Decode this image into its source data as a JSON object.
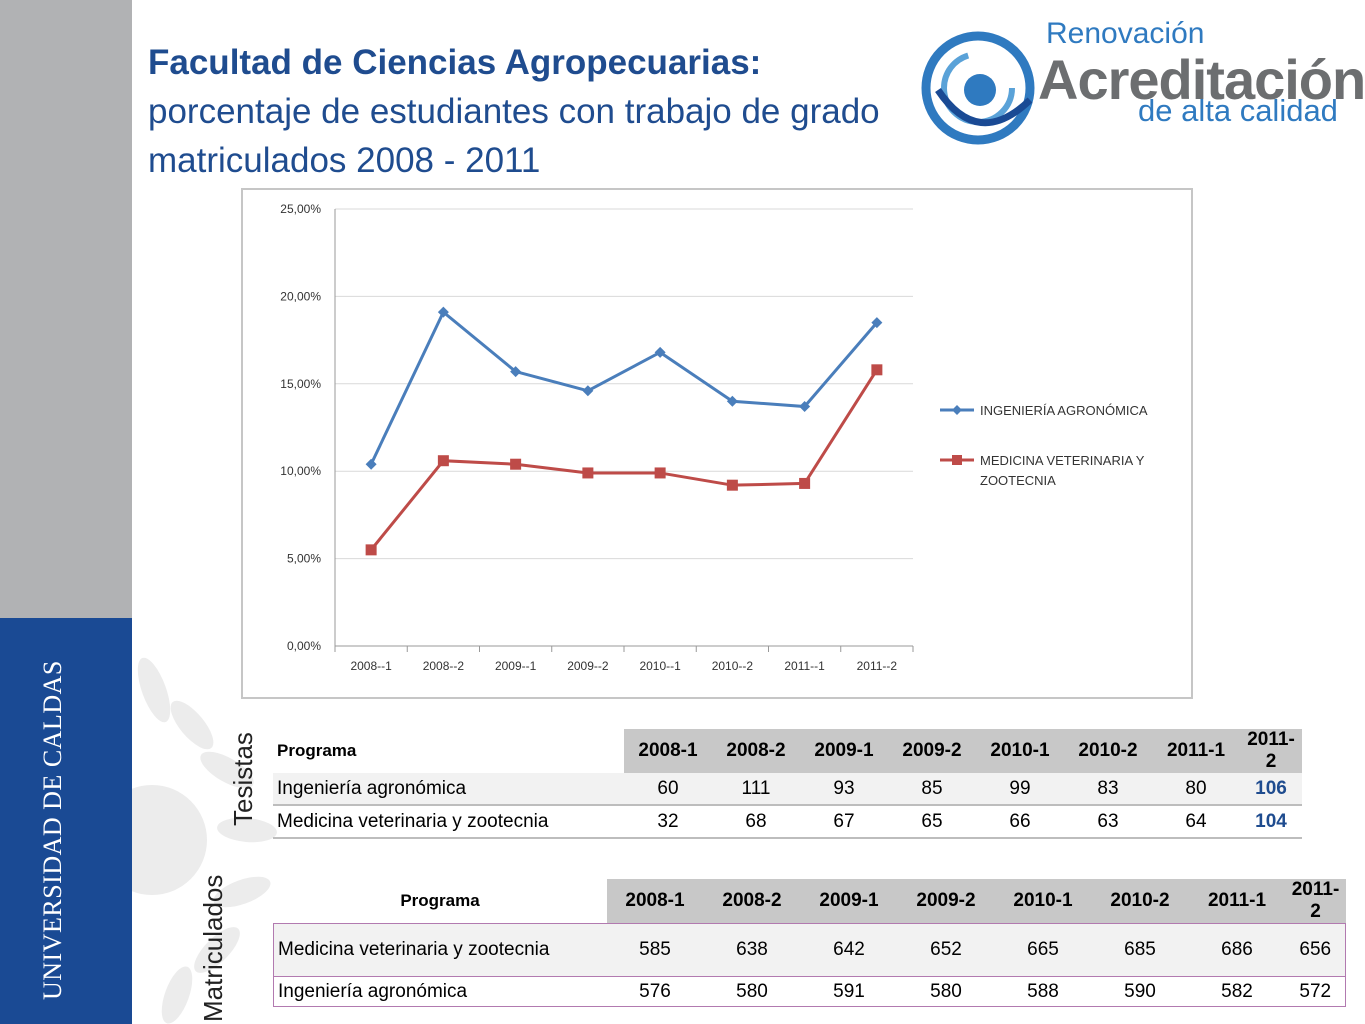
{
  "header": {
    "title_bold": "Facultad de Ciencias Agropecuarias:",
    "title_rest": "porcentaje de estudiantes con trabajo de grado matriculados 2008 - 2011"
  },
  "logo": {
    "line1": "Renovación",
    "line2": "Acreditación",
    "line3": "de alta calidad",
    "colors": {
      "blue": "#2f7ac0",
      "gray": "#6c6e70"
    }
  },
  "sidebar": {
    "university": "UNIVERSIDAD DE CALDAS"
  },
  "colors": {
    "title": "#1f4c8f",
    "sidebar_top": "#b1b2b4",
    "sidebar_bottom": "#1a4a94"
  },
  "chart_data": {
    "type": "line",
    "categories": [
      "2008--1",
      "2008--2",
      "2009--1",
      "2009--2",
      "2010--1",
      "2010--2",
      "2011--1",
      "2011--2"
    ],
    "series": [
      {
        "name": "INGENIERÍA AGRONÓMICA",
        "color": "#4a7ebb",
        "marker": "diamond",
        "values": [
          10.4,
          19.1,
          15.7,
          14.6,
          16.8,
          14.0,
          13.7,
          18.5
        ]
      },
      {
        "name": "MEDICINA VETERINARIA Y ZOOTECNIA",
        "color": "#be4b48",
        "marker": "square",
        "values": [
          5.5,
          10.6,
          10.4,
          9.9,
          9.9,
          9.2,
          9.3,
          15.8
        ]
      }
    ],
    "yticks": [
      "0,00%",
      "5,00%",
      "10,00%",
      "15,00%",
      "20,00%",
      "25,00%"
    ],
    "ylim": [
      0,
      25
    ],
    "grid": true,
    "legend": "right"
  },
  "tables": {
    "tesistas": {
      "side_label": "Tesistas",
      "header": [
        "Programa",
        "2008-1",
        "2008-2",
        "2009-1",
        "2009-2",
        "2010-1",
        "2010-2",
        "2011-1",
        "2011-2"
      ],
      "rows": [
        [
          "Ingeniería agronómica",
          "60",
          "111",
          "93",
          "85",
          "99",
          "83",
          "80",
          "106"
        ],
        [
          "Medicina veterinaria y zootecnia",
          "32",
          "68",
          "67",
          "65",
          "66",
          "63",
          "64",
          "104"
        ]
      ]
    },
    "matriculados": {
      "side_label": "Matriculados",
      "header": [
        "Programa",
        "2008-1",
        "2008-2",
        "2009-1",
        "2009-2",
        "2010-1",
        "2010-2",
        "2011-1",
        "2011-2"
      ],
      "rows": [
        [
          "Medicina veterinaria y zootecnia",
          "585",
          "638",
          "642",
          "652",
          "665",
          "685",
          "686",
          "656"
        ],
        [
          "Ingeniería agronómica",
          "576",
          "580",
          "591",
          "580",
          "588",
          "590",
          "582",
          "572"
        ]
      ]
    }
  }
}
